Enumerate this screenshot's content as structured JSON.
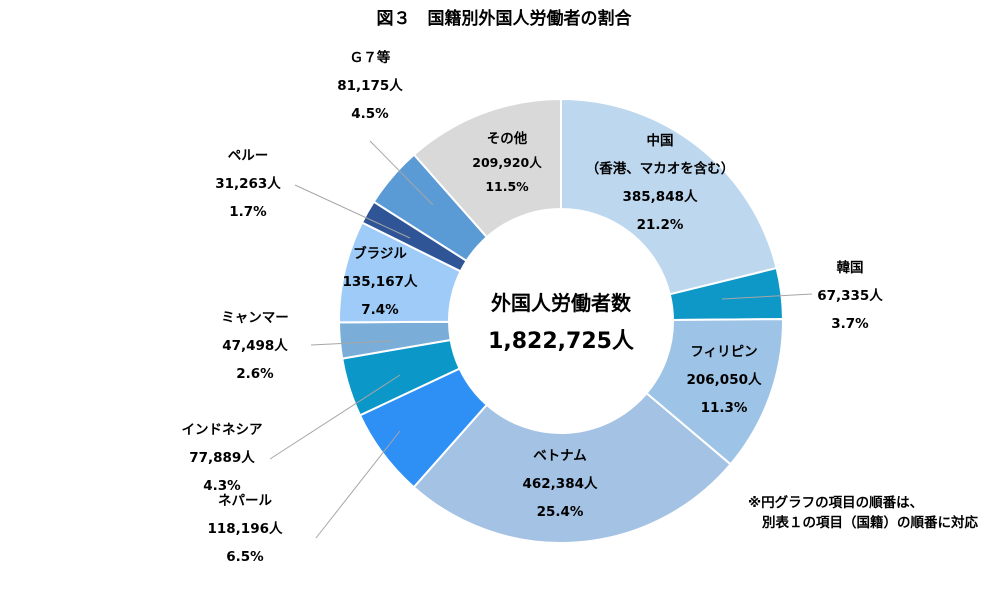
{
  "chart_data": {
    "type": "pie",
    "title": "図３　国籍別外国人労働者の割合",
    "center_label": "外国人労働者数",
    "center_value": "1,822,725人",
    "note": [
      "※円グラフの項目の順番は、",
      "別表１の項目（国籍）の順番に対応"
    ],
    "slices": [
      {
        "name": "中国",
        "name_sub": "（香港、マカオを含む）",
        "value": 385848,
        "value_label": "385,848人",
        "percent": 21.2,
        "percent_label": "21.2%",
        "color": "#bdd7ee"
      },
      {
        "name": "韓国",
        "value": 67335,
        "value_label": "67,335人",
        "percent": 3.7,
        "percent_label": "3.7%",
        "color": "#0e98c8"
      },
      {
        "name": "フィリピン",
        "value": 206050,
        "value_label": "206,050人",
        "percent": 11.3,
        "percent_label": "11.3%",
        "color": "#9dc3e6"
      },
      {
        "name": "ベトナム",
        "value": 462384,
        "value_label": "462,384人",
        "percent": 25.4,
        "percent_label": "25.4%",
        "color": "#a3c2e4"
      },
      {
        "name": "ネパール",
        "value": 118196,
        "value_label": "118,196人",
        "percent": 6.5,
        "percent_label": "6.5%",
        "color": "#2e8ff5"
      },
      {
        "name": "インドネシア",
        "value": 77889,
        "value_label": "77,889人",
        "percent": 4.3,
        "percent_label": "4.3%",
        "color": "#0b97c7"
      },
      {
        "name": "ミャンマー",
        "value": 47498,
        "value_label": "47,498人",
        "percent": 2.6,
        "percent_label": "2.6%",
        "color": "#7aaed8"
      },
      {
        "name": "ブラジル",
        "value": 135167,
        "value_label": "135,167人",
        "percent": 7.4,
        "percent_label": "7.4%",
        "color": "#9ecbf7"
      },
      {
        "name": "ペルー",
        "value": 31263,
        "value_label": "31,263人",
        "percent": 1.7,
        "percent_label": "1.7%",
        "color": "#2f5597"
      },
      {
        "name": "Ｇ７等",
        "value": 81175,
        "value_label": "81,175人",
        "percent": 4.5,
        "percent_label": "4.5%",
        "color": "#5b9bd5"
      },
      {
        "name": "その他",
        "value": 209920,
        "value_label": "209,920人",
        "percent": 11.5,
        "percent_label": "11.5%",
        "color": "#d9d9d9"
      }
    ]
  }
}
